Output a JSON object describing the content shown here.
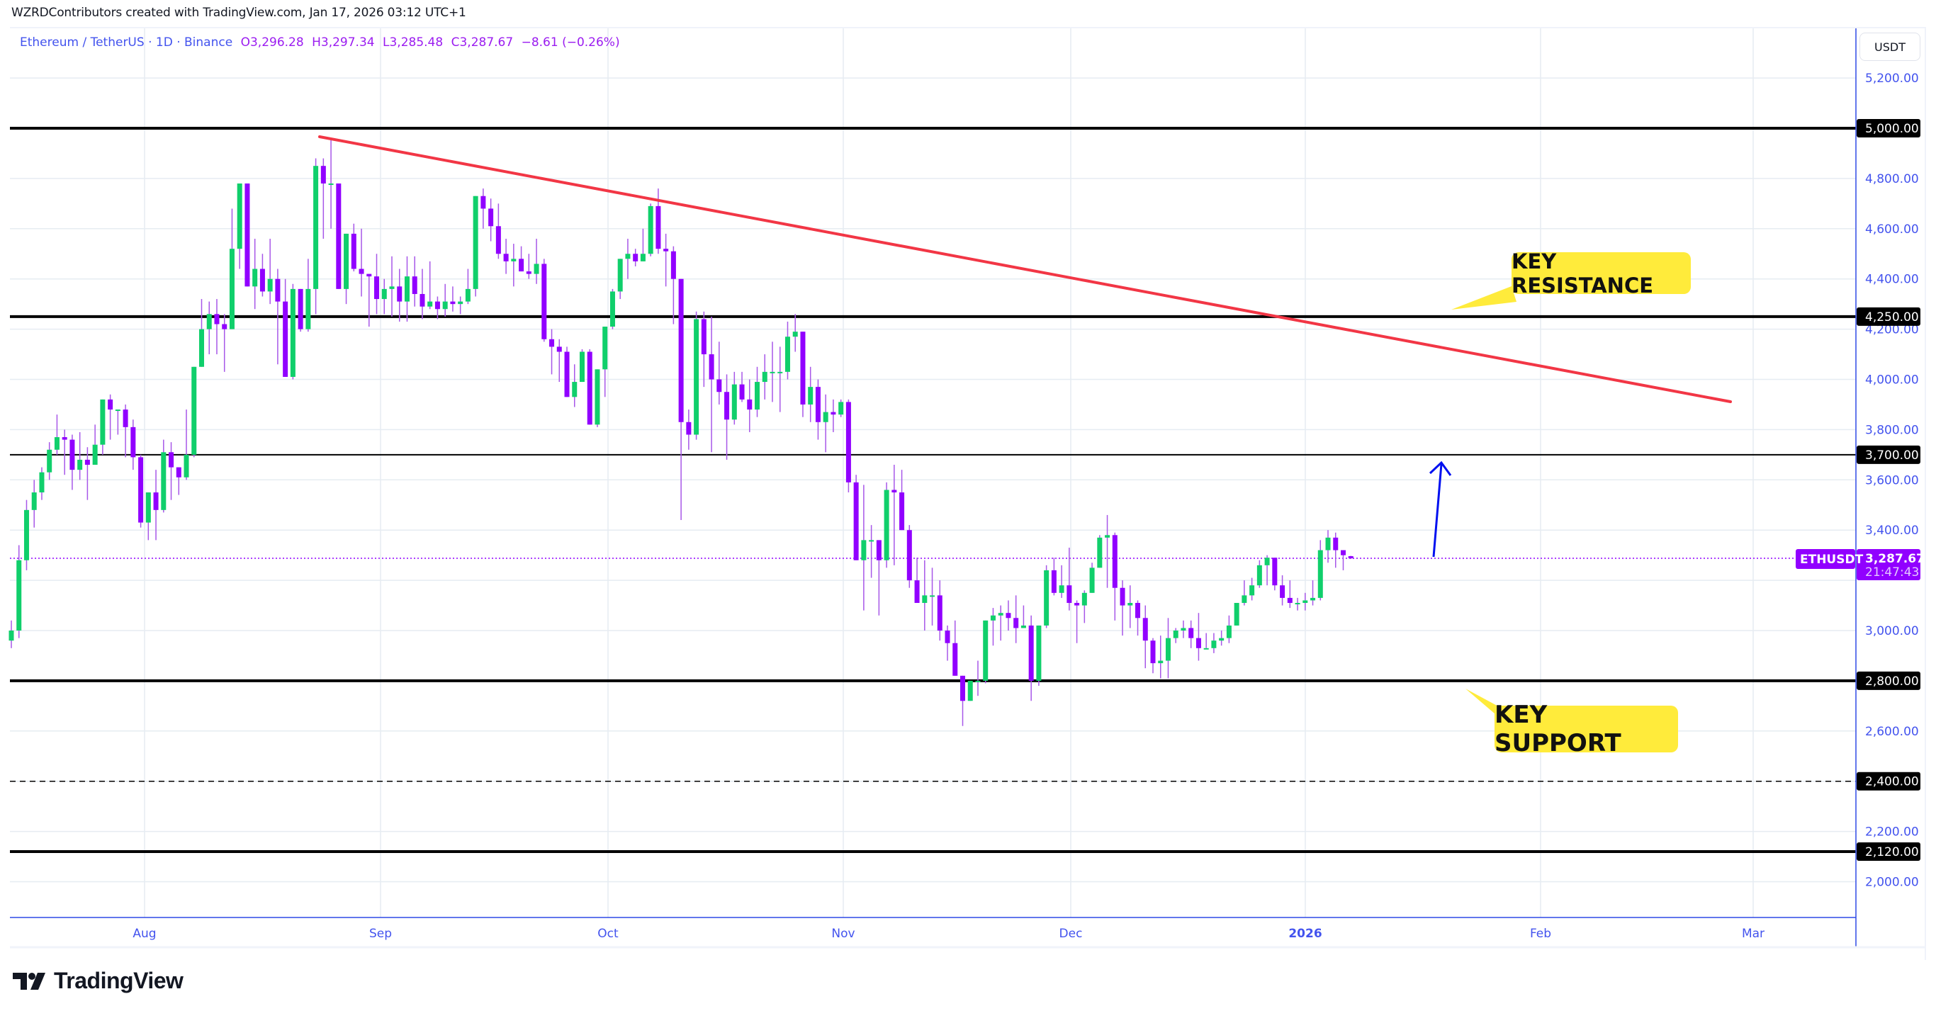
{
  "caption": "WZRDContributors created with TradingView.com, Jan 17, 2026 03:12 UTC+1",
  "legend": {
    "symbol": "Ethereum / TetherUS",
    "interval": "1D",
    "exchange": "Binance",
    "open_label": "O",
    "open": "3,296.28",
    "high_label": "H",
    "high": "3,297.34",
    "low_label": "L",
    "low": "3,285.48",
    "close_label": "C",
    "close": "3,287.67",
    "change": "−8.61 (−0.26%)"
  },
  "price_axis": {
    "unit": "USDT",
    "ticks": [
      "5,200.00",
      "4,800.00",
      "4,600.00",
      "4,400.00",
      "4,200.00",
      "4,000.00",
      "3,800.00",
      "3,600.00",
      "3,400.00",
      "3,000.00",
      "2,600.00",
      "2,200.00",
      "2,000.00"
    ],
    "level_badges": [
      "5,000.00",
      "4,250.00",
      "3,700.00",
      "2,800.00",
      "2,400.00",
      "2,120.00"
    ],
    "last_price_badge": {
      "symbol": "ETHUSDT",
      "price": "3,287.67",
      "countdown": "21:47:43"
    }
  },
  "time_axis": {
    "labels": [
      "Aug",
      "Sep",
      "Oct",
      "Nov",
      "Dec",
      "2026",
      "Feb",
      "Mar"
    ]
  },
  "annotations": {
    "key_resistance": "KEY RESISTANCE",
    "key_support": "KEY SUPPORT"
  },
  "colors": {
    "up": "#10cf6b",
    "down": "#9100ff",
    "wick": "#a757e8",
    "trendline": "#f23645",
    "level_line": "#000000",
    "arrow": "#0010f0",
    "axis_text": "#4353ee",
    "grid": "#e6ecf2",
    "callout": "#ffeb3b",
    "last_price": "#9100ff"
  },
  "footer": {
    "brand": "TradingView"
  },
  "chart_data": {
    "type": "candlestick",
    "title": "Ethereum / TetherUS · 1D · Binance",
    "xlabel": "",
    "ylabel": "USDT",
    "ylim": [
      1880,
      5330
    ],
    "grid": true,
    "x_range": [
      "2025-07-14",
      "2026-03-14"
    ],
    "horizontal_levels": [
      {
        "price": 5000,
        "style": "solid-thick"
      },
      {
        "price": 4250,
        "style": "solid-thick",
        "label": "KEY RESISTANCE"
      },
      {
        "price": 3700,
        "style": "solid-thin"
      },
      {
        "price": 2800,
        "style": "solid-thick",
        "label": "KEY SUPPORT"
      },
      {
        "price": 2400,
        "style": "dashed"
      },
      {
        "price": 2120,
        "style": "solid-thick"
      }
    ],
    "trendline": {
      "from": {
        "date": "2025-08-24",
        "price": 4955
      },
      "to": {
        "date": "2026-02-25",
        "price": 3900
      },
      "color": "#f23645"
    },
    "projection_arrow": {
      "from": {
        "date": "2026-01-19",
        "price": 3300
      },
      "to": {
        "date": "2026-01-20",
        "price": 3660
      }
    },
    "last_price": 3287.67,
    "start_date": "2025-07-14",
    "candles": [
      [
        2960,
        3040,
        2930,
        3000
      ],
      [
        3000,
        3340,
        2970,
        3280
      ],
      [
        3280,
        3520,
        3240,
        3480
      ],
      [
        3480,
        3600,
        3410,
        3550
      ],
      [
        3550,
        3650,
        3520,
        3630
      ],
      [
        3630,
        3750,
        3600,
        3720
      ],
      [
        3720,
        3860,
        3700,
        3770
      ],
      [
        3770,
        3800,
        3620,
        3760
      ],
      [
        3760,
        3780,
        3560,
        3640
      ],
      [
        3640,
        3790,
        3600,
        3680
      ],
      [
        3680,
        3730,
        3520,
        3660
      ],
      [
        3660,
        3820,
        3660,
        3740
      ],
      [
        3740,
        3870,
        3700,
        3920
      ],
      [
        3920,
        3940,
        3760,
        3880
      ],
      [
        3880,
        3860,
        3780,
        3880
      ],
      [
        3880,
        3900,
        3690,
        3810
      ],
      [
        3810,
        3840,
        3640,
        3690
      ],
      [
        3690,
        3700,
        3410,
        3430
      ],
      [
        3430,
        3500,
        3360,
        3550
      ],
      [
        3550,
        3640,
        3360,
        3480
      ],
      [
        3480,
        3760,
        3470,
        3710
      ],
      [
        3710,
        3750,
        3520,
        3650
      ],
      [
        3650,
        3630,
        3540,
        3610
      ],
      [
        3610,
        3880,
        3600,
        3700
      ],
      [
        3700,
        4040,
        3690,
        4050
      ],
      [
        4050,
        4320,
        4050,
        4200
      ],
      [
        4200,
        4310,
        4100,
        4260
      ],
      [
        4260,
        4320,
        4100,
        4220
      ],
      [
        4220,
        4260,
        4030,
        4200
      ],
      [
        4200,
        4680,
        4200,
        4520
      ],
      [
        4520,
        4680,
        4440,
        4780
      ],
      [
        4780,
        4780,
        4440,
        4370
      ],
      [
        4370,
        4560,
        4280,
        4440
      ],
      [
        4440,
        4500,
        4330,
        4350
      ],
      [
        4350,
        4560,
        4300,
        4400
      ],
      [
        4400,
        4440,
        4060,
        4310
      ],
      [
        4310,
        4400,
        4060,
        4010
      ],
      [
        4010,
        4380,
        4000,
        4360
      ],
      [
        4360,
        4360,
        4190,
        4200
      ],
      [
        4200,
        4480,
        4190,
        4360
      ],
      [
        4360,
        4880,
        4260,
        4850
      ],
      [
        4850,
        4880,
        4560,
        4780
      ],
      [
        4780,
        4960,
        4600,
        4780
      ],
      [
        4780,
        4780,
        4400,
        4360
      ],
      [
        4360,
        4560,
        4300,
        4580
      ],
      [
        4580,
        4620,
        4430,
        4440
      ],
      [
        4440,
        4600,
        4330,
        4420
      ],
      [
        4420,
        4420,
        4210,
        4410
      ],
      [
        4410,
        4500,
        4260,
        4320
      ],
      [
        4320,
        4400,
        4260,
        4360
      ],
      [
        4360,
        4490,
        4250,
        4370
      ],
      [
        4370,
        4440,
        4230,
        4310
      ],
      [
        4310,
        4490,
        4230,
        4410
      ],
      [
        4410,
        4490,
        4290,
        4340
      ],
      [
        4340,
        4440,
        4240,
        4290
      ],
      [
        4290,
        4470,
        4280,
        4310
      ],
      [
        4310,
        4330,
        4240,
        4280
      ],
      [
        4280,
        4380,
        4250,
        4310
      ],
      [
        4310,
        4370,
        4270,
        4300
      ],
      [
        4300,
        4330,
        4260,
        4310
      ],
      [
        4310,
        4440,
        4300,
        4360
      ],
      [
        4360,
        4520,
        4330,
        4730
      ],
      [
        4730,
        4760,
        4600,
        4680
      ],
      [
        4680,
        4720,
        4550,
        4610
      ],
      [
        4610,
        4700,
        4480,
        4500
      ],
      [
        4500,
        4560,
        4420,
        4470
      ],
      [
        4470,
        4540,
        4370,
        4480
      ],
      [
        4480,
        4530,
        4440,
        4430
      ],
      [
        4430,
        4500,
        4400,
        4420
      ],
      [
        4420,
        4560,
        4380,
        4460
      ],
      [
        4460,
        4480,
        4150,
        4160
      ],
      [
        4160,
        4200,
        4020,
        4130
      ],
      [
        4130,
        4160,
        3990,
        4110
      ],
      [
        4110,
        4130,
        3960,
        3930
      ],
      [
        3930,
        4060,
        3890,
        3990
      ],
      [
        3990,
        4120,
        3990,
        4110
      ],
      [
        4110,
        4120,
        3850,
        3820
      ],
      [
        3820,
        4010,
        3810,
        4040
      ],
      [
        4040,
        4150,
        3930,
        4210
      ],
      [
        4210,
        4360,
        4200,
        4350
      ],
      [
        4350,
        4470,
        4320,
        4480
      ],
      [
        4480,
        4560,
        4400,
        4500
      ],
      [
        4500,
        4520,
        4450,
        4470
      ],
      [
        4470,
        4600,
        4470,
        4500
      ],
      [
        4500,
        4700,
        4490,
        4690
      ],
      [
        4690,
        4760,
        4500,
        4520
      ],
      [
        4520,
        4580,
        4370,
        4510
      ],
      [
        4510,
        4530,
        4220,
        4400
      ],
      [
        4400,
        4300,
        3440,
        3830
      ],
      [
        3830,
        3880,
        3720,
        3780
      ],
      [
        3780,
        4270,
        3760,
        4240
      ],
      [
        4240,
        4270,
        3970,
        4100
      ],
      [
        4100,
        4250,
        3710,
        4000
      ],
      [
        4000,
        4150,
        3900,
        3950
      ],
      [
        3950,
        4020,
        3680,
        3840
      ],
      [
        3840,
        4030,
        3820,
        3980
      ],
      [
        3980,
        4030,
        3910,
        3920
      ],
      [
        3920,
        4000,
        3790,
        3880
      ],
      [
        3880,
        4050,
        3850,
        3990
      ],
      [
        3990,
        4100,
        3920,
        4030
      ],
      [
        4030,
        4150,
        3910,
        4030
      ],
      [
        4030,
        4130,
        3870,
        4030
      ],
      [
        4030,
        4230,
        4000,
        4170
      ],
      [
        4170,
        4260,
        4110,
        4190
      ],
      [
        4190,
        4160,
        3850,
        3900
      ],
      [
        3900,
        4050,
        3830,
        3970
      ],
      [
        3970,
        4000,
        3760,
        3830
      ],
      [
        3830,
        3940,
        3710,
        3870
      ],
      [
        3870,
        3920,
        3790,
        3860
      ],
      [
        3860,
        3920,
        3850,
        3910
      ],
      [
        3910,
        3920,
        3550,
        3590
      ],
      [
        3590,
        3620,
        3400,
        3280
      ],
      [
        3280,
        3580,
        3080,
        3360
      ],
      [
        3360,
        3420,
        3210,
        3360
      ],
      [
        3360,
        3350,
        3060,
        3280
      ],
      [
        3280,
        3590,
        3250,
        3560
      ],
      [
        3560,
        3660,
        3260,
        3550
      ],
      [
        3550,
        3640,
        3430,
        3400
      ],
      [
        3400,
        3420,
        3170,
        3200
      ],
      [
        3200,
        3290,
        3110,
        3110
      ],
      [
        3110,
        3280,
        3000,
        3140
      ],
      [
        3140,
        3250,
        3020,
        3140
      ],
      [
        3140,
        3200,
        2960,
        3000
      ],
      [
        3000,
        3020,
        2880,
        2950
      ],
      [
        2950,
        3040,
        2820,
        2820
      ],
      [
        2820,
        2820,
        2620,
        2720
      ],
      [
        2720,
        2760,
        2750,
        2800
      ],
      [
        2800,
        2880,
        2740,
        2800
      ],
      [
        2800,
        3020,
        2790,
        3040
      ],
      [
        3040,
        3090,
        2940,
        3060
      ],
      [
        3060,
        3100,
        2960,
        3070
      ],
      [
        3070,
        3120,
        3000,
        3050
      ],
      [
        3050,
        3140,
        2950,
        3010
      ],
      [
        3010,
        3100,
        3010,
        3020
      ],
      [
        3020,
        3060,
        2720,
        2800
      ],
      [
        2800,
        2910,
        2780,
        3020
      ],
      [
        3020,
        3260,
        3010,
        3240
      ],
      [
        3240,
        3290,
        3140,
        3150
      ],
      [
        3150,
        3260,
        3130,
        3180
      ],
      [
        3180,
        3330,
        3080,
        3110
      ],
      [
        3110,
        3120,
        2950,
        3100
      ],
      [
        3100,
        3160,
        3030,
        3150
      ],
      [
        3150,
        3270,
        3160,
        3250
      ],
      [
        3250,
        3380,
        3250,
        3370
      ],
      [
        3370,
        3460,
        3170,
        3380
      ],
      [
        3380,
        3390,
        3040,
        3170
      ],
      [
        3170,
        3200,
        2980,
        3100
      ],
      [
        3100,
        3180,
        3010,
        3110
      ],
      [
        3110,
        3120,
        2980,
        3050
      ],
      [
        3050,
        3100,
        2850,
        2960
      ],
      [
        2960,
        2970,
        2830,
        2870
      ],
      [
        2870,
        2980,
        2810,
        2880
      ],
      [
        2880,
        3050,
        2810,
        2970
      ],
      [
        2970,
        3010,
        2950,
        3000
      ],
      [
        3000,
        3040,
        2970,
        3010
      ],
      [
        3010,
        3040,
        2930,
        2970
      ],
      [
        2970,
        3070,
        2880,
        2930
      ],
      [
        2930,
        2990,
        2930,
        2930
      ],
      [
        2930,
        2990,
        2910,
        2960
      ],
      [
        2960,
        3000,
        2940,
        2970
      ],
      [
        2970,
        3060,
        2950,
        3020
      ],
      [
        3020,
        3110,
        3020,
        3110
      ],
      [
        3110,
        3200,
        3100,
        3140
      ],
      [
        3140,
        3210,
        3120,
        3180
      ],
      [
        3180,
        3280,
        3170,
        3260
      ],
      [
        3260,
        3300,
        3180,
        3290
      ],
      [
        3290,
        3290,
        3160,
        3180
      ],
      [
        3180,
        3220,
        3100,
        3130
      ],
      [
        3130,
        3200,
        3090,
        3110
      ],
      [
        3110,
        3130,
        3080,
        3110
      ],
      [
        3110,
        3150,
        3080,
        3120
      ],
      [
        3120,
        3200,
        3100,
        3130
      ],
      [
        3130,
        3360,
        3120,
        3320
      ],
      [
        3320,
        3400,
        3270,
        3370
      ],
      [
        3370,
        3390,
        3250,
        3320
      ],
      [
        3320,
        3320,
        3240,
        3300
      ],
      [
        3296.28,
        3297.34,
        3285.48,
        3287.67
      ]
    ]
  }
}
